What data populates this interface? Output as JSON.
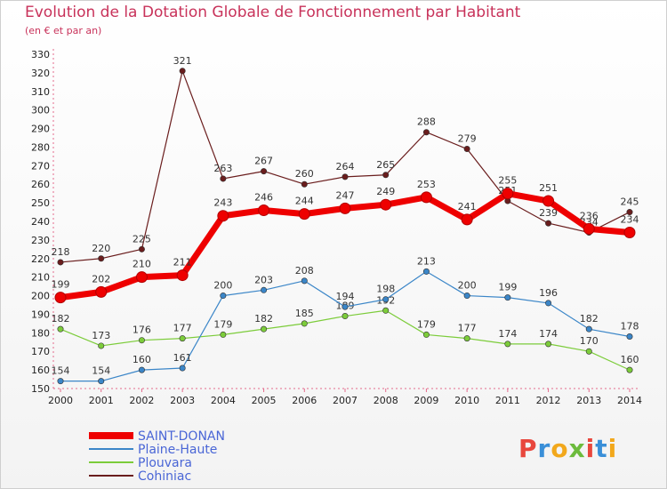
{
  "page": {
    "title": "Evolution de la Dotation Globale de Fonctionnement par Habitant",
    "subtitle": "(en € et par an)"
  },
  "logo": {
    "text": "Proxiti",
    "colors": [
      "#e8473d",
      "#3a8fd8",
      "#f2a81c",
      "#6cbb3c"
    ]
  },
  "chart_data": {
    "type": "line",
    "x": [
      2000,
      2001,
      2002,
      2003,
      2004,
      2005,
      2006,
      2007,
      2008,
      2009,
      2010,
      2011,
      2012,
      2013,
      2014
    ],
    "ylim": [
      150,
      330
    ],
    "yticks": [
      150,
      160,
      170,
      180,
      190,
      200,
      210,
      220,
      230,
      240,
      250,
      260,
      270,
      280,
      290,
      300,
      310,
      320,
      330
    ],
    "grid": false,
    "legend_position": "bottom-left",
    "series": [
      {
        "name": "SAINT-DONAN",
        "color": "#ee0000",
        "values": [
          199,
          202,
          210,
          211,
          243,
          246,
          244,
          247,
          249,
          253,
          241,
          255,
          251,
          236,
          234
        ]
      },
      {
        "name": "Plaine-Haute",
        "color": "#3b86c8",
        "values": [
          154,
          154,
          160,
          161,
          200,
          203,
          208,
          194,
          198,
          213,
          200,
          199,
          196,
          182,
          178
        ]
      },
      {
        "name": "Plouvara",
        "color": "#7ccc3a",
        "values": [
          182,
          173,
          176,
          177,
          179,
          182,
          185,
          189,
          192,
          179,
          177,
          174,
          174,
          170,
          160
        ]
      },
      {
        "name": "Cohiniac",
        "color": "#6a1d1d",
        "values": [
          218,
          220,
          225,
          321,
          263,
          267,
          260,
          264,
          265,
          288,
          279,
          251,
          239,
          234,
          245
        ]
      }
    ]
  }
}
